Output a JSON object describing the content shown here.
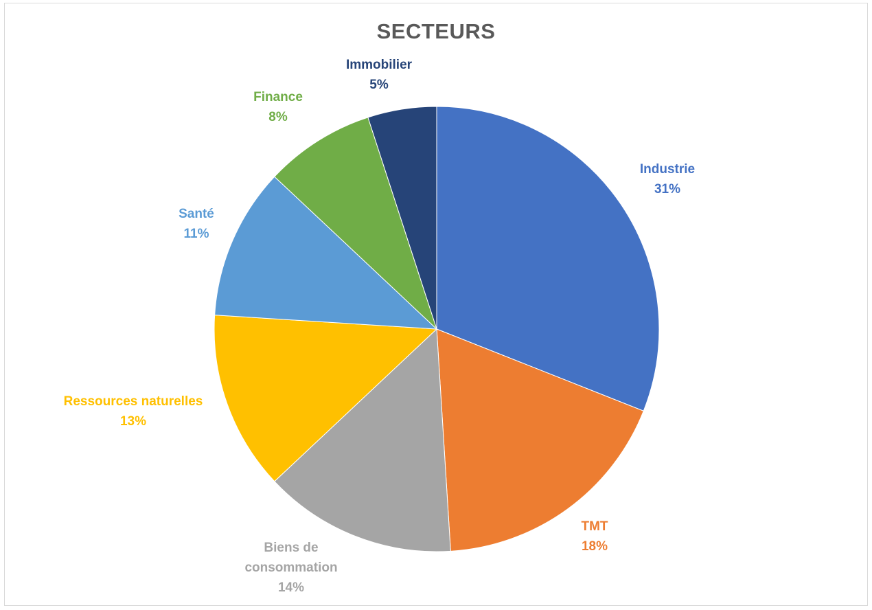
{
  "chart_data": {
    "type": "pie",
    "title": "SECTEURS",
    "slices": [
      {
        "label": "Industrie",
        "value": 31,
        "display": "31%",
        "color": "#4472C4"
      },
      {
        "label": "TMT",
        "value": 18,
        "display": "18%",
        "color": "#ED7D31"
      },
      {
        "label": "Biens de consommation",
        "value": 14,
        "display": "14%",
        "color": "#A5A5A5"
      },
      {
        "label": "Ressources naturelles",
        "value": 13,
        "display": "13%",
        "color": "#FFC000"
      },
      {
        "label": "Santé",
        "value": 11,
        "display": "11%",
        "color": "#5B9BD5"
      },
      {
        "label": "Finance",
        "value": 8,
        "display": "8%",
        "color": "#70AD47"
      },
      {
        "label": "Immobilier",
        "value": 5,
        "display": "5%",
        "color": "#264478"
      }
    ],
    "start_angle_deg": 0,
    "direction": "clockwise",
    "legend": "none"
  }
}
